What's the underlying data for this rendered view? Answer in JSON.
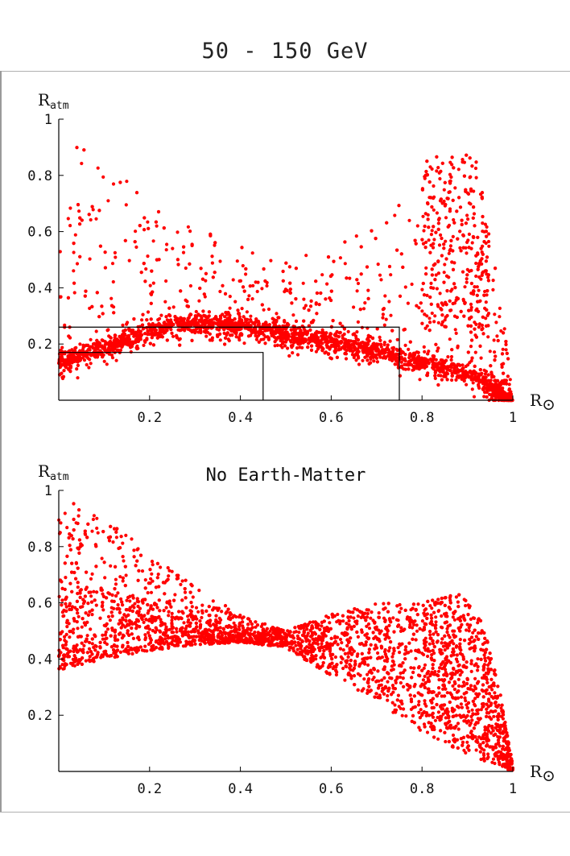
{
  "title": "50 - 150 GeV",
  "colors": {
    "points": "#ff0000",
    "axes": "#000000",
    "frame": "#9a9a9a"
  },
  "chart_data": [
    {
      "type": "scatter",
      "title": "",
      "xlabel": {
        "main": "R",
        "sub": "⊙"
      },
      "ylabel": {
        "main": "R",
        "sub": "atm"
      },
      "xlim": [
        0,
        1
      ],
      "ylim": [
        0,
        1
      ],
      "xticks": [
        0.2,
        0.4,
        0.6,
        0.8,
        1
      ],
      "xtick_labels": [
        "0.2",
        "0.4",
        "0.6",
        "0.8",
        "1"
      ],
      "yticks": [
        0.2,
        0.4,
        0.6,
        0.8,
        1
      ],
      "ytick_labels": [
        "0.2",
        "0.4",
        "0.6",
        "0.8",
        "1"
      ],
      "grid": false,
      "marker_color": "#ff0000",
      "reference_boxes": [
        {
          "x_max": 0.45,
          "y_max": 0.17
        },
        {
          "x_max": 0.75,
          "y_max": 0.26
        }
      ],
      "point_density": {
        "lower_band": [
          [
            0.0,
            0.14
          ],
          [
            0.1,
            0.19
          ],
          [
            0.2,
            0.25
          ],
          [
            0.3,
            0.28
          ],
          [
            0.4,
            0.27
          ],
          [
            0.5,
            0.24
          ],
          [
            0.6,
            0.21
          ],
          [
            0.7,
            0.18
          ],
          [
            0.8,
            0.14
          ],
          [
            0.9,
            0.1
          ],
          [
            1.0,
            0.0
          ]
        ],
        "upper_envelope": [
          [
            0.0,
            0.95
          ],
          [
            0.05,
            0.95
          ],
          [
            0.1,
            0.85
          ],
          [
            0.2,
            0.72
          ],
          [
            0.3,
            0.62
          ],
          [
            0.4,
            0.55
          ],
          [
            0.5,
            0.5
          ],
          [
            0.6,
            0.58
          ],
          [
            0.7,
            0.64
          ],
          [
            0.8,
            0.85
          ],
          [
            0.87,
            0.9
          ],
          [
            0.92,
            0.85
          ],
          [
            0.96,
            0.55
          ],
          [
            1.0,
            0.02
          ]
        ]
      }
    },
    {
      "type": "scatter",
      "title": "No Earth-Matter",
      "xlabel": {
        "main": "R",
        "sub": "⊙"
      },
      "ylabel": {
        "main": "R",
        "sub": "atm"
      },
      "xlim": [
        0,
        1
      ],
      "ylim": [
        0,
        1
      ],
      "xticks": [
        0.2,
        0.4,
        0.6,
        0.8,
        1
      ],
      "xtick_labels": [
        "0.2",
        "0.4",
        "0.6",
        "0.8",
        "1"
      ],
      "yticks": [
        0.2,
        0.4,
        0.6,
        0.8,
        1
      ],
      "ytick_labels": [
        "0.2",
        "0.4",
        "0.6",
        "0.8",
        "1"
      ],
      "grid": false,
      "marker_color": "#ff0000",
      "point_density": {
        "lower_envelope": [
          [
            0.0,
            0.36
          ],
          [
            0.1,
            0.4
          ],
          [
            0.2,
            0.43
          ],
          [
            0.3,
            0.45
          ],
          [
            0.4,
            0.46
          ],
          [
            0.5,
            0.44
          ],
          [
            0.6,
            0.34
          ],
          [
            0.7,
            0.25
          ],
          [
            0.8,
            0.14
          ],
          [
            0.9,
            0.06
          ],
          [
            1.0,
            0.0
          ]
        ],
        "upper_envelope": [
          [
            0.0,
            1.0
          ],
          [
            0.1,
            0.9
          ],
          [
            0.2,
            0.78
          ],
          [
            0.3,
            0.66
          ],
          [
            0.4,
            0.56
          ],
          [
            0.5,
            0.5
          ],
          [
            0.6,
            0.56
          ],
          [
            0.7,
            0.6
          ],
          [
            0.8,
            0.6
          ],
          [
            0.88,
            0.64
          ],
          [
            0.93,
            0.56
          ],
          [
            0.97,
            0.3
          ],
          [
            1.0,
            0.02
          ]
        ]
      }
    }
  ]
}
